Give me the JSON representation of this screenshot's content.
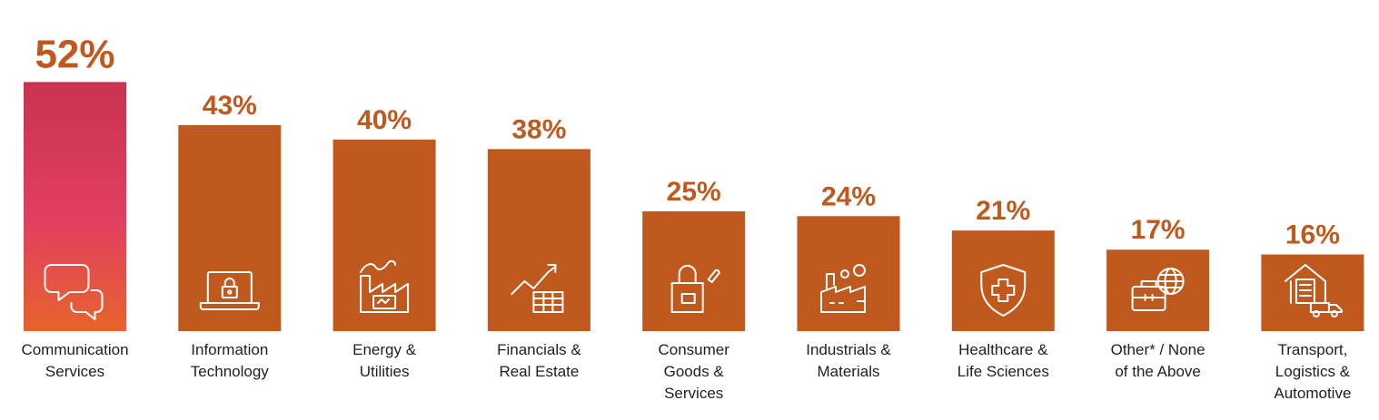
{
  "chart_data": {
    "type": "bar",
    "categories": [
      "Communication Services",
      "Information Technology",
      "Energy & Utilities",
      "Financials & Real Estate",
      "Consumer Goods & Services",
      "Industrials & Materials",
      "Healthcare & Life Sciences",
      "Other* / None of the Above",
      "Transport, Logistics & Automotive"
    ],
    "category_lines": [
      [
        "Communication",
        "Services"
      ],
      [
        "Information",
        "Technology"
      ],
      [
        "Energy &",
        "Utilities"
      ],
      [
        "Financials &",
        "Real Estate"
      ],
      [
        "Consumer",
        "Goods &",
        "Services"
      ],
      [
        "Industrials &",
        "Materials"
      ],
      [
        "Healthcare &",
        "Life Sciences"
      ],
      [
        "Other* / None",
        "of the Above"
      ],
      [
        "Transport,",
        "Logistics &",
        "Automotive"
      ]
    ],
    "values": [
      52,
      43,
      40,
      38,
      25,
      24,
      21,
      17,
      16
    ],
    "value_labels": [
      "52%",
      "43%",
      "40%",
      "38%",
      "25%",
      "24%",
      "21%",
      "17%",
      "16%"
    ],
    "icons": [
      "chat-bubbles-icon",
      "laptop-lock-icon",
      "factory-energy-icon",
      "finance-chart-icon",
      "shopping-bag-icon",
      "industrial-factory-icon",
      "health-shield-icon",
      "briefcase-globe-icon",
      "warehouse-truck-icon"
    ],
    "unit": "%",
    "ylim": [
      0,
      52
    ],
    "title": "",
    "xlabel": "",
    "ylabel": "",
    "grid": false,
    "legend": "none",
    "colors": {
      "bar": "#c0591e",
      "highlight_top": "#c9334f",
      "highlight_mid": "#e13f61",
      "highlight_bottom": "#e6632c",
      "value_label": "#c0591e",
      "category_label": "#1f1f1f"
    }
  }
}
